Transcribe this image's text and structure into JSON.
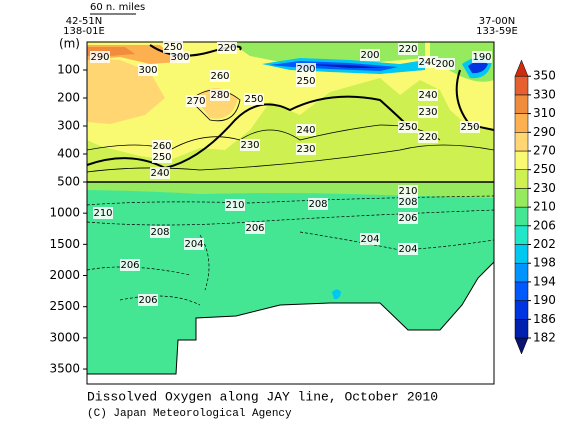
{
  "chart_data": {
    "type": "contour-section",
    "title": "Dissolved Oxygen along JAY line, October 2010",
    "credit": "(C) Japan Meteorological Agency",
    "scale_label": "60 n. miles",
    "start": {
      "lat": "42-51N",
      "lon": "138-01E"
    },
    "end": {
      "lat": "37-00N",
      "lon": "133-59E"
    },
    "y_unit": "(m)",
    "panels": [
      {
        "ylim": [
          0,
          500
        ],
        "yticks": [
          100,
          200,
          300,
          400,
          500
        ]
      },
      {
        "ylim": [
          500,
          3740
        ],
        "yticks": [
          1000,
          1500,
          2000,
          2500,
          3000,
          3500
        ]
      }
    ],
    "colorbar": {
      "levels": [
        182,
        186,
        190,
        194,
        198,
        202,
        206,
        210,
        230,
        250,
        270,
        290,
        310,
        330,
        350
      ],
      "colors": [
        "#0a1470",
        "#0020b0",
        "#0034e0",
        "#0058ff",
        "#0094ff",
        "#00c8f0",
        "#22e6c8",
        "#44e694",
        "#96ea5e",
        "#cef050",
        "#fafa72",
        "#ffd672",
        "#fcb050",
        "#f08c3c",
        "#e66030",
        "#cc2c10"
      ]
    },
    "contour_labels": [
      290,
      300,
      250,
      300,
      220,
      260,
      280,
      270,
      250,
      200,
      250,
      200,
      220,
      240,
      200,
      190,
      240,
      230,
      220,
      250,
      250,
      240,
      230,
      230,
      260,
      250,
      240,
      210,
      208,
      210,
      210,
      208,
      206,
      206,
      208,
      204,
      204,
      204,
      206,
      206
    ]
  }
}
